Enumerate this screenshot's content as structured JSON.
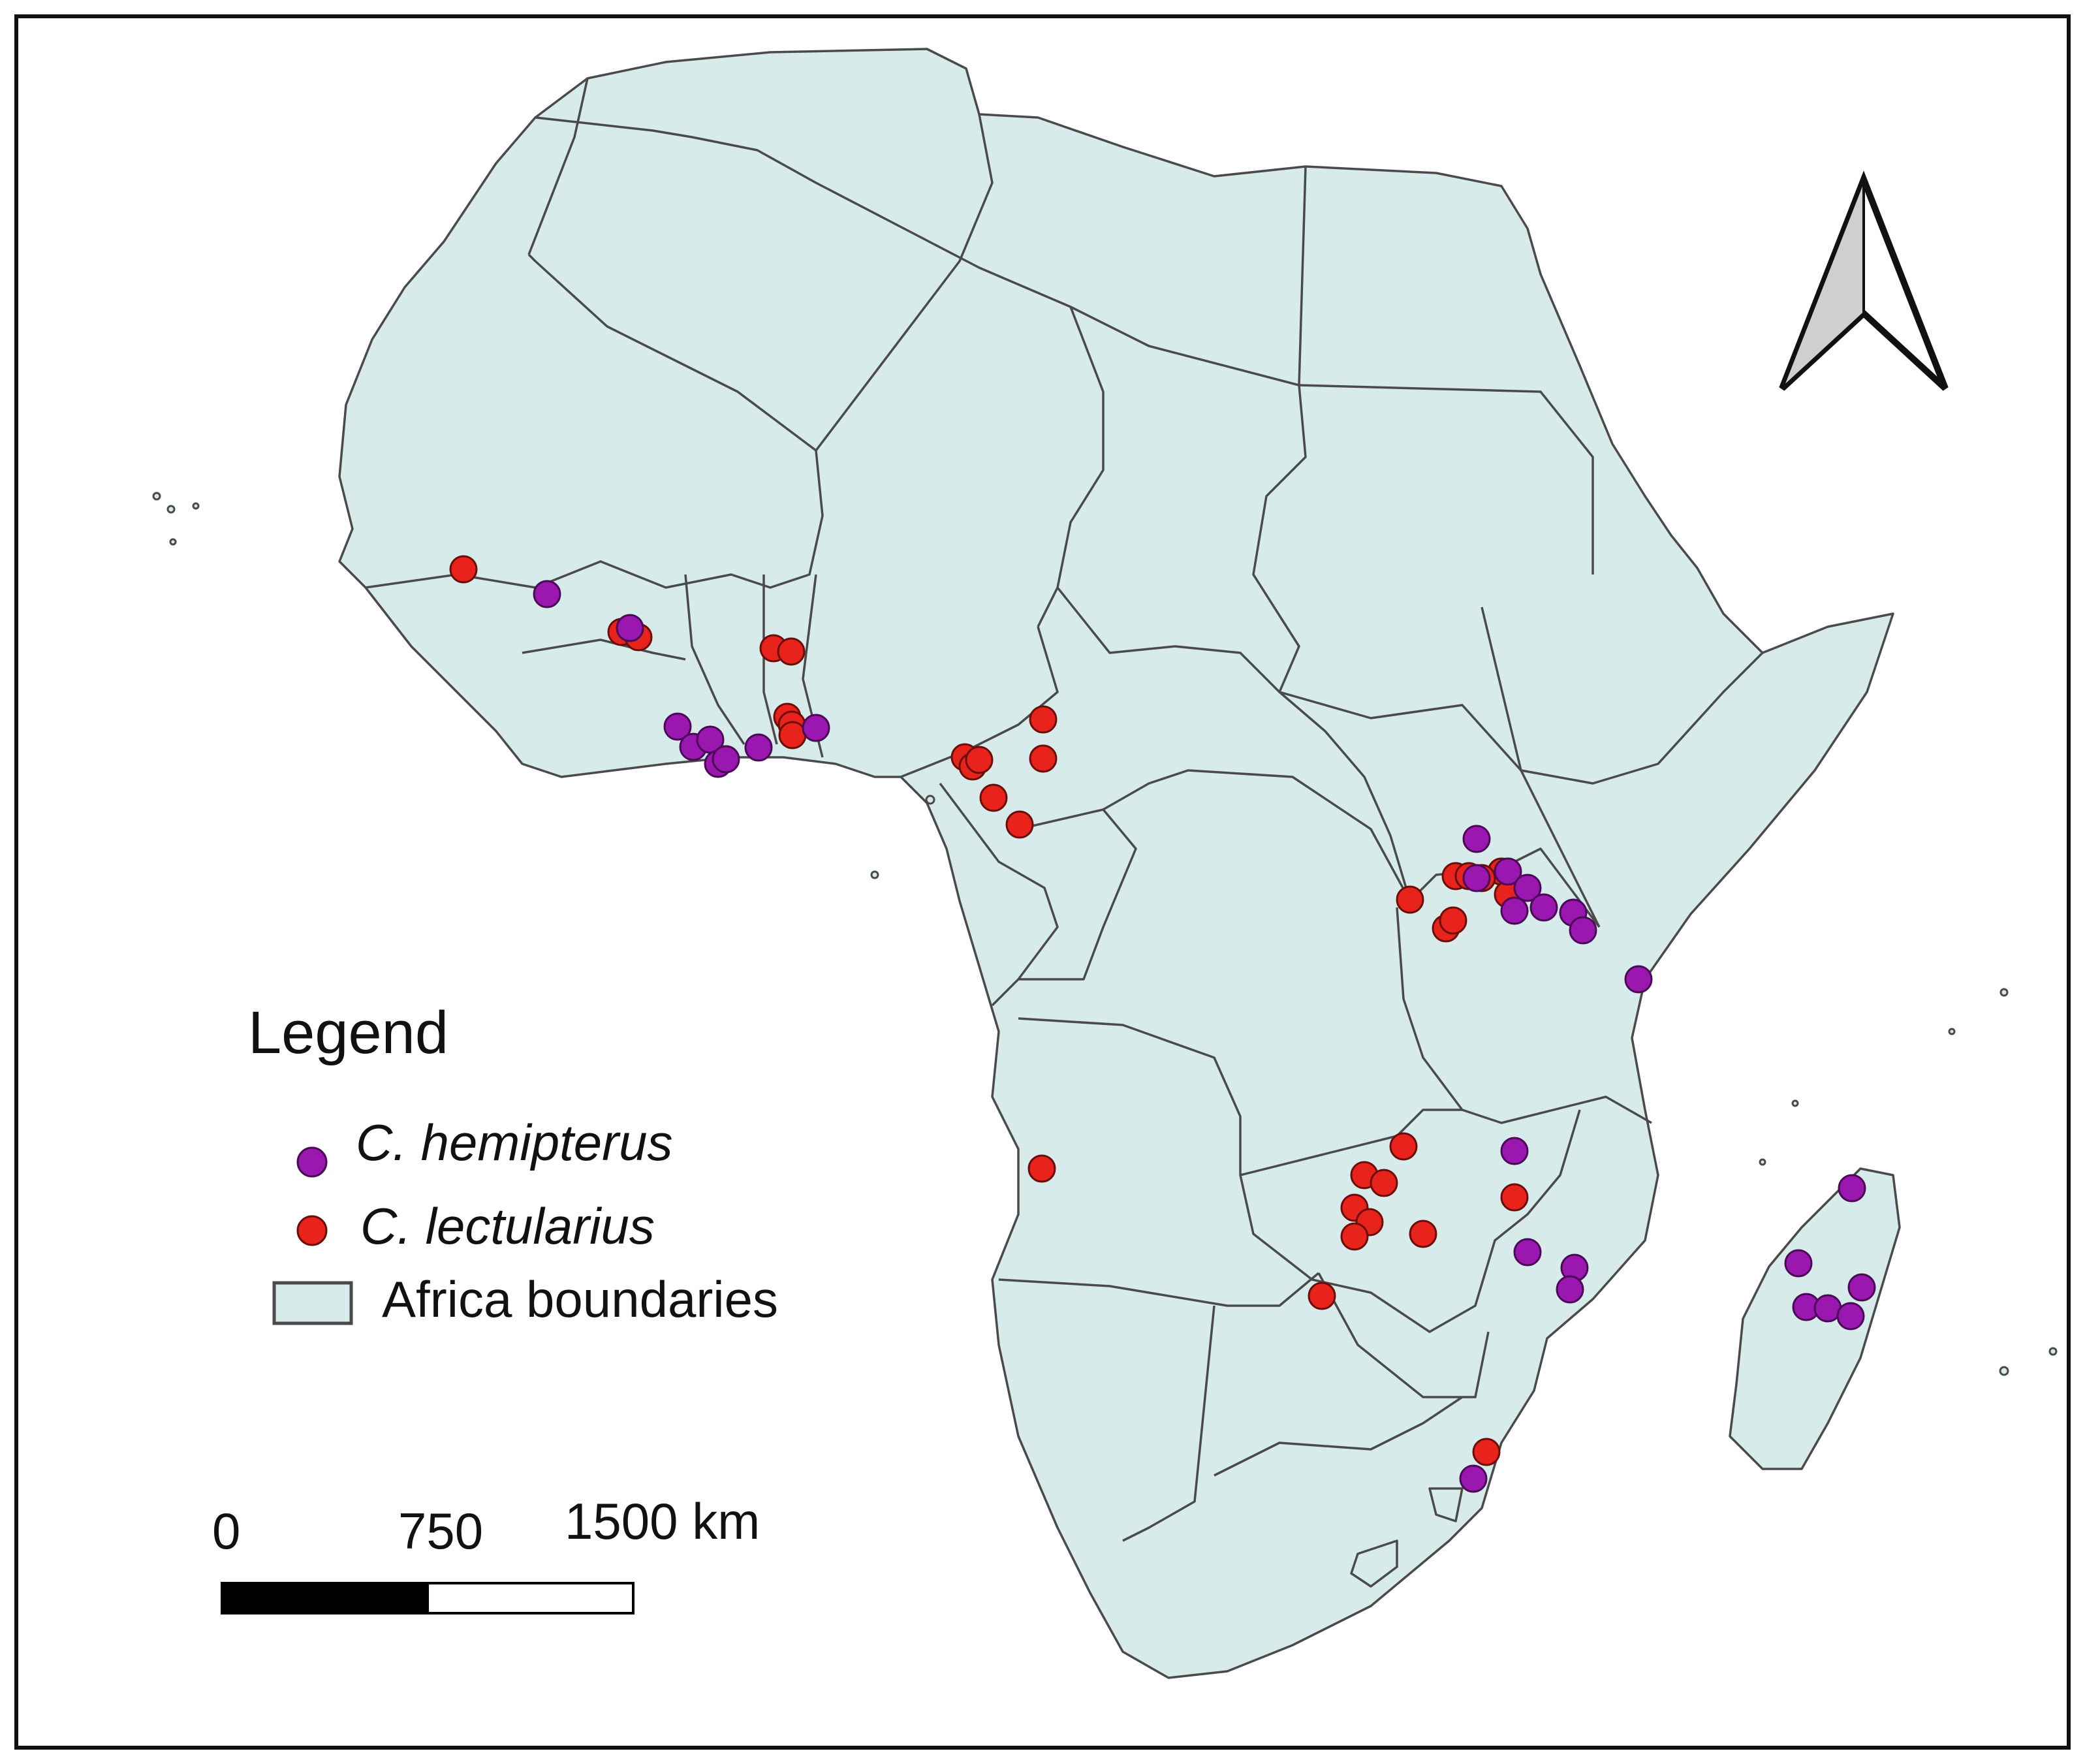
{
  "legend": {
    "title": "Legend",
    "items": [
      {
        "label": "C. hemipterus",
        "italic": true,
        "symbol": "purple-circle",
        "color": "#9a17b0"
      },
      {
        "label": "C. lectularius",
        "italic": true,
        "symbol": "red-circle",
        "color": "#e8231c"
      },
      {
        "label": "Africa boundaries",
        "italic": false,
        "symbol": "filled-rectangle",
        "color": "#d8ebeb"
      }
    ]
  },
  "scale_bar": {
    "labels": [
      "0",
      "750",
      "1500 km"
    ]
  },
  "north_arrow": {
    "icon": "north-arrow-icon"
  },
  "colors": {
    "land": "#d8ebeb",
    "borders": "#4a4a4a",
    "hemipterus": "#9a17b0",
    "lectularius": "#e8231c"
  }
}
